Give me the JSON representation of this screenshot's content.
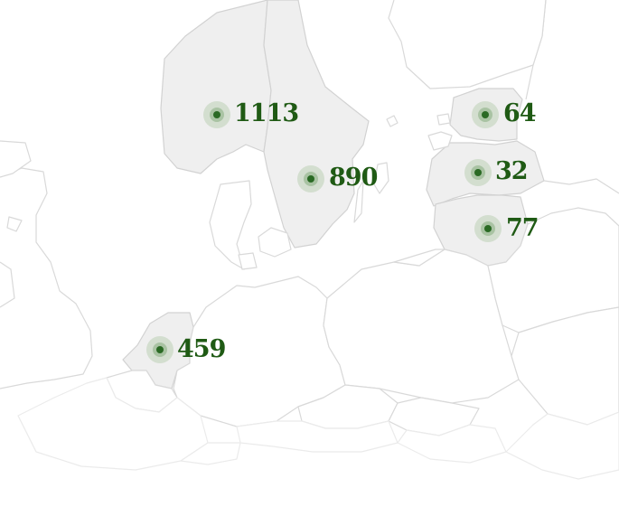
{
  "map": {
    "colors": {
      "highlight_fill": "#efefef",
      "border": "#d9d9d9",
      "marker": "#2a6a24",
      "marker_halo": "#cfdccb",
      "label": "#1f5a14"
    },
    "markers": [
      {
        "id": "norway",
        "value": "1113"
      },
      {
        "id": "sweden",
        "value": "890"
      },
      {
        "id": "estonia",
        "value": "64"
      },
      {
        "id": "latvia",
        "value": "32"
      },
      {
        "id": "lithuania",
        "value": "77"
      },
      {
        "id": "netherlands",
        "value": "459"
      }
    ]
  }
}
